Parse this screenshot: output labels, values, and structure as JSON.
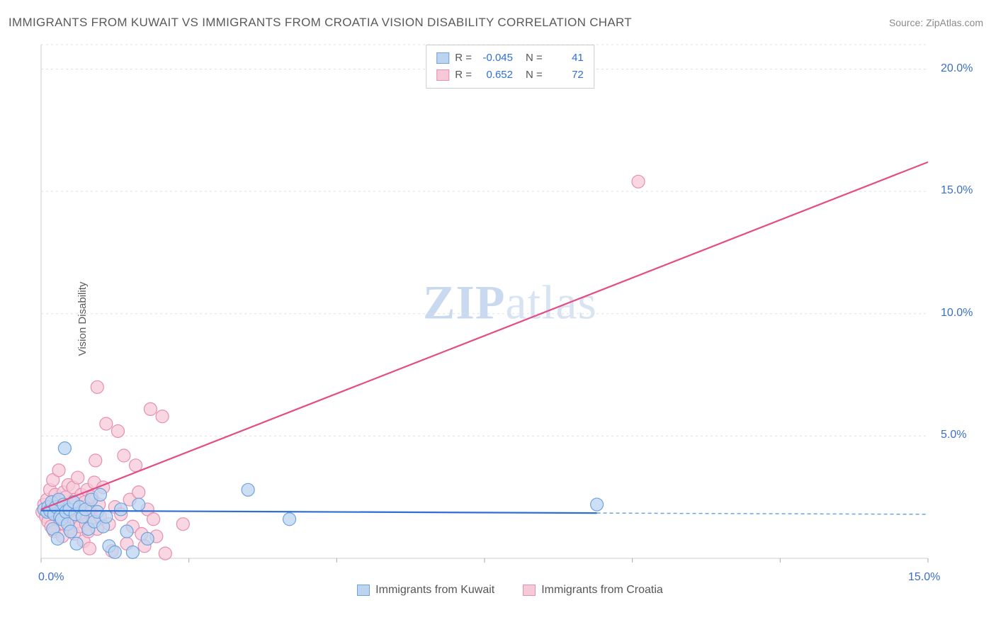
{
  "title": "IMMIGRANTS FROM KUWAIT VS IMMIGRANTS FROM CROATIA VISION DISABILITY CORRELATION CHART",
  "source_label": "Source: ZipAtlas.com",
  "watermark": {
    "part1": "ZIP",
    "part2": "atlas"
  },
  "chart": {
    "type": "scatter-with-regression",
    "background_color": "#ffffff",
    "grid_color": "#e0e0e0",
    "grid_dash": "3,4",
    "axis_color": "#cccccc",
    "tick_color": "#aaaaaa",
    "text_color": "#5a5a5a",
    "value_color": "#3b6fc7",
    "ylabel": "Vision Disability",
    "xlim": [
      0,
      15
    ],
    "ylim": [
      0,
      21
    ],
    "xticks": [
      0,
      5,
      10,
      15
    ],
    "xtick_labels": [
      "0.0%",
      "",
      "",
      "15.0%"
    ],
    "xtick_minor_step": 2.5,
    "yticks": [
      5,
      10,
      15,
      20
    ],
    "ytick_labels": {
      "5": "5.0%",
      "10": "10.0%",
      "15": "15.0%",
      "20": "20.0%"
    },
    "marker_radius": 9,
    "marker_stroke_width": 1.2,
    "line_width": 2.2,
    "series": [
      {
        "name": "Immigrants from Kuwait",
        "legend_label": "Immigrants from Kuwait",
        "color_fill": "#bcd4f0",
        "color_stroke": "#6ea3dd",
        "line_color": "#2f6fd4",
        "R": "-0.045",
        "N": "41",
        "regression": {
          "x1_data": 0,
          "y1_data": 1.95,
          "x2_data": 9.4,
          "y2_data": 1.85,
          "x2_dash_data": 15.0,
          "y2_dash_data": 1.8
        },
        "points": [
          [
            0.05,
            2.0
          ],
          [
            0.1,
            1.9
          ],
          [
            0.12,
            2.1
          ],
          [
            0.15,
            1.95
          ],
          [
            0.18,
            2.3
          ],
          [
            0.2,
            1.2
          ],
          [
            0.22,
            1.8
          ],
          [
            0.25,
            2.1
          ],
          [
            0.28,
            0.8
          ],
          [
            0.3,
            2.4
          ],
          [
            0.32,
            1.7
          ],
          [
            0.35,
            1.6
          ],
          [
            0.38,
            2.2
          ],
          [
            0.4,
            4.5
          ],
          [
            0.42,
            1.9
          ],
          [
            0.45,
            1.4
          ],
          [
            0.48,
            2.0
          ],
          [
            0.5,
            1.1
          ],
          [
            0.55,
            2.3
          ],
          [
            0.58,
            1.8
          ],
          [
            0.6,
            0.6
          ],
          [
            0.65,
            2.1
          ],
          [
            0.7,
            1.7
          ],
          [
            0.75,
            2.0
          ],
          [
            0.8,
            1.2
          ],
          [
            0.85,
            2.4
          ],
          [
            0.9,
            1.5
          ],
          [
            0.95,
            1.9
          ],
          [
            1.0,
            2.6
          ],
          [
            1.05,
            1.3
          ],
          [
            1.1,
            1.7
          ],
          [
            1.15,
            0.5
          ],
          [
            1.25,
            0.25
          ],
          [
            1.35,
            2.0
          ],
          [
            1.45,
            1.1
          ],
          [
            1.55,
            0.25
          ],
          [
            1.65,
            2.2
          ],
          [
            1.8,
            0.8
          ],
          [
            3.5,
            2.8
          ],
          [
            4.2,
            1.6
          ],
          [
            9.4,
            2.2
          ]
        ]
      },
      {
        "name": "Immigrants from Croatia",
        "legend_label": "Immigrants from Croatia",
        "color_fill": "#f6c9d8",
        "color_stroke": "#e68fb0",
        "line_color": "#e54b84",
        "R": "0.652",
        "N": "72",
        "regression": {
          "x1_data": 0,
          "y1_data": 2.0,
          "x2_data": 15.0,
          "y2_data": 16.2
        },
        "points": [
          [
            0.02,
            1.9
          ],
          [
            0.05,
            2.2
          ],
          [
            0.08,
            1.7
          ],
          [
            0.1,
            2.4
          ],
          [
            0.12,
            1.5
          ],
          [
            0.15,
            2.8
          ],
          [
            0.17,
            1.3
          ],
          [
            0.18,
            2.0
          ],
          [
            0.2,
            3.2
          ],
          [
            0.22,
            1.1
          ],
          [
            0.24,
            2.6
          ],
          [
            0.26,
            1.8
          ],
          [
            0.28,
            2.3
          ],
          [
            0.3,
            3.6
          ],
          [
            0.32,
            1.6
          ],
          [
            0.34,
            2.1
          ],
          [
            0.36,
            0.9
          ],
          [
            0.38,
            2.7
          ],
          [
            0.4,
            1.4
          ],
          [
            0.42,
            2.5
          ],
          [
            0.44,
            1.9
          ],
          [
            0.46,
            3.0
          ],
          [
            0.48,
            1.2
          ],
          [
            0.5,
            2.2
          ],
          [
            0.52,
            1.7
          ],
          [
            0.54,
            2.9
          ],
          [
            0.56,
            1.0
          ],
          [
            0.58,
            2.4
          ],
          [
            0.6,
            1.5
          ],
          [
            0.62,
            3.3
          ],
          [
            0.64,
            2.0
          ],
          [
            0.66,
            1.3
          ],
          [
            0.68,
            2.6
          ],
          [
            0.7,
            1.8
          ],
          [
            0.72,
            0.7
          ],
          [
            0.74,
            2.3
          ],
          [
            0.76,
            1.4
          ],
          [
            0.78,
            2.8
          ],
          [
            0.8,
            1.1
          ],
          [
            0.82,
            0.4
          ],
          [
            0.84,
            1.9
          ],
          [
            0.86,
            2.5
          ],
          [
            0.88,
            1.6
          ],
          [
            0.9,
            3.1
          ],
          [
            0.92,
            4.0
          ],
          [
            0.95,
            1.2
          ],
          [
            0.98,
            2.2
          ],
          [
            1.0,
            1.7
          ],
          [
            1.05,
            2.9
          ],
          [
            1.1,
            5.5
          ],
          [
            1.15,
            1.4
          ],
          [
            1.2,
            0.3
          ],
          [
            1.25,
            2.1
          ],
          [
            1.3,
            5.2
          ],
          [
            1.35,
            1.8
          ],
          [
            1.4,
            4.2
          ],
          [
            1.45,
            0.6
          ],
          [
            1.5,
            2.4
          ],
          [
            1.55,
            1.3
          ],
          [
            1.6,
            3.8
          ],
          [
            1.65,
            2.7
          ],
          [
            1.7,
            1.0
          ],
          [
            1.75,
            0.5
          ],
          [
            1.8,
            2.0
          ],
          [
            1.85,
            6.1
          ],
          [
            1.9,
            1.6
          ],
          [
            1.95,
            0.9
          ],
          [
            2.05,
            5.8
          ],
          [
            2.1,
            0.2
          ],
          [
            2.4,
            1.4
          ],
          [
            0.95,
            7.0
          ],
          [
            10.1,
            15.4
          ]
        ]
      }
    ]
  }
}
